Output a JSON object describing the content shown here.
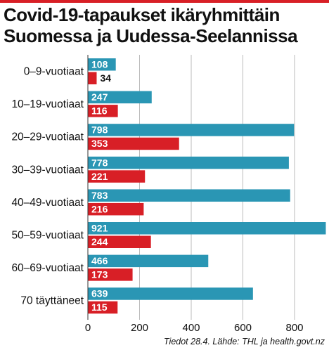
{
  "title_lines": [
    "Covid-19-tapaukset ikäryhmittäin",
    "Suomessa ja Uudessa-Seelannissa"
  ],
  "source": "Tiedot 28.4. Lähde: THL ja health.govt.nz",
  "colors": {
    "series_a": "#2a96b4",
    "series_b": "#d81f26",
    "accent": "#d81f26",
    "grid": "#bbbbbb"
  },
  "chart_data": {
    "type": "bar",
    "orientation": "horizontal",
    "categories": [
      "0–9-vuotiaat",
      "10–19-vuotiaat",
      "20–29-vuotiaat",
      "30–39-vuotiaat",
      "40–49-vuotiaat",
      "50–59-vuotiaat",
      "60–69-vuotiaat",
      "70 täyttäneet"
    ],
    "series": [
      {
        "values": [
          108,
          247,
          798,
          778,
          783,
          921,
          466,
          639
        ],
        "color": "#2a96b4"
      },
      {
        "values": [
          34,
          116,
          353,
          221,
          216,
          244,
          173,
          115
        ],
        "color": "#d81f26"
      }
    ],
    "xlim": [
      0,
      1000
    ],
    "xticks": [
      0,
      200,
      400,
      600,
      800
    ],
    "grid": true
  }
}
